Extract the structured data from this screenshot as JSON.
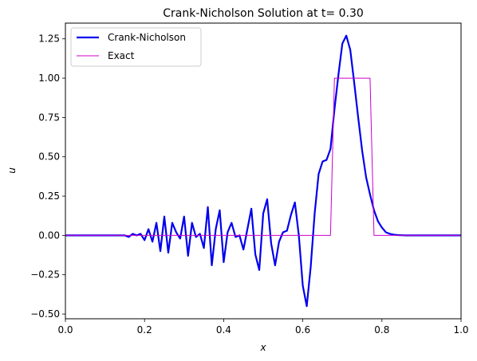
{
  "chart_data": {
    "type": "line",
    "title": "Crank-Nicholson Solution at t= 0.30",
    "xlabel": "x",
    "ylabel": "u",
    "xlim": [
      0.0,
      1.0
    ],
    "ylim": [
      -0.53,
      1.35
    ],
    "grid": false,
    "legend_position": "top-left",
    "xticks": [
      0.0,
      0.2,
      0.4,
      0.6,
      0.8,
      1.0
    ],
    "xtick_labels": [
      "0.0",
      "0.2",
      "0.4",
      "0.6",
      "0.8",
      "1.0"
    ],
    "yticks": [
      -0.5,
      -0.25,
      0.0,
      0.25,
      0.5,
      0.75,
      1.0,
      1.25
    ],
    "ytick_labels": [
      "−0.50",
      "−0.25",
      "0.00",
      "0.25",
      "0.50",
      "0.75",
      "1.00",
      "1.25"
    ],
    "series": [
      {
        "name": "Crank-Nicholson",
        "color": "#0000ee",
        "line_width": "thick",
        "x": [
          0.0,
          0.15,
          0.16,
          0.17,
          0.18,
          0.19,
          0.2,
          0.21,
          0.22,
          0.23,
          0.24,
          0.25,
          0.26,
          0.27,
          0.28,
          0.29,
          0.3,
          0.31,
          0.32,
          0.33,
          0.34,
          0.35,
          0.36,
          0.37,
          0.38,
          0.39,
          0.4,
          0.41,
          0.42,
          0.43,
          0.44,
          0.45,
          0.46,
          0.47,
          0.48,
          0.49,
          0.5,
          0.51,
          0.52,
          0.53,
          0.54,
          0.55,
          0.56,
          0.57,
          0.58,
          0.59,
          0.6,
          0.61,
          0.62,
          0.63,
          0.64,
          0.65,
          0.66,
          0.67,
          0.68,
          0.69,
          0.7,
          0.71,
          0.72,
          0.73,
          0.74,
          0.75,
          0.76,
          0.77,
          0.78,
          0.79,
          0.8,
          0.81,
          0.82,
          0.83,
          0.84,
          0.85,
          0.86,
          1.0
        ],
        "y": [
          0.0,
          0.0,
          -0.01,
          0.01,
          0.0,
          0.01,
          -0.03,
          0.04,
          -0.04,
          0.08,
          -0.1,
          0.12,
          -0.11,
          0.08,
          0.02,
          -0.02,
          0.12,
          -0.13,
          0.08,
          -0.01,
          0.01,
          -0.08,
          0.18,
          -0.19,
          0.04,
          0.16,
          -0.17,
          0.02,
          0.08,
          -0.01,
          0.0,
          -0.09,
          0.04,
          0.17,
          -0.12,
          -0.22,
          0.14,
          0.23,
          -0.05,
          -0.19,
          -0.04,
          0.02,
          0.03,
          0.13,
          0.21,
          0.0,
          -0.32,
          -0.45,
          -0.2,
          0.14,
          0.39,
          0.47,
          0.48,
          0.55,
          0.8,
          1.02,
          1.22,
          1.27,
          1.18,
          0.97,
          0.75,
          0.54,
          0.37,
          0.26,
          0.16,
          0.09,
          0.05,
          0.02,
          0.01,
          0.005,
          0.002,
          0.001,
          0.0,
          0.0
        ]
      },
      {
        "name": "Exact",
        "color": "#cc00cc",
        "line_width": "thin",
        "x": [
          0.0,
          0.67,
          0.68,
          0.77,
          0.78,
          1.0
        ],
        "y": [
          0.0,
          0.0,
          1.0,
          1.0,
          0.0,
          0.0
        ]
      }
    ]
  }
}
